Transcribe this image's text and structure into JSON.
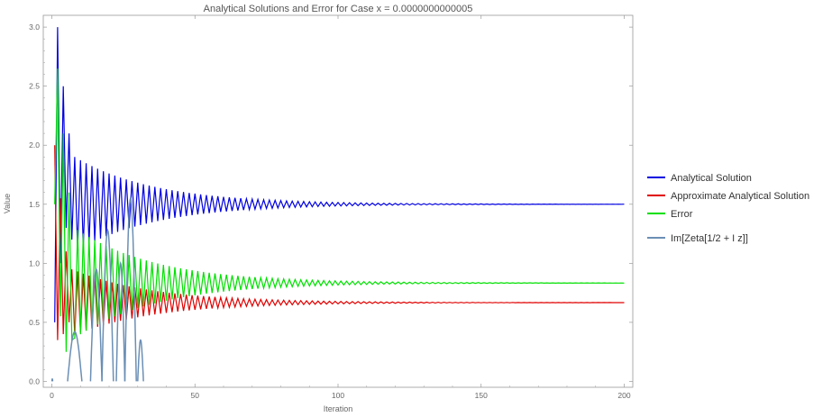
{
  "chart_data": {
    "type": "line",
    "title": "Analytical Solutions and Error for Case x = 0.0000000000005",
    "xlabel": "Iteration",
    "ylabel": "Value",
    "xlim": [
      -3,
      203
    ],
    "ylim": [
      -0.05,
      3.1
    ],
    "xticks": [
      "0",
      "50",
      "100",
      "150",
      "200"
    ],
    "yticks": [
      "0.0",
      "0.5",
      "1.0",
      "1.5",
      "2.0",
      "2.5",
      "3.0"
    ],
    "grid": false,
    "legend_position": "right",
    "series": [
      {
        "name": "Analytical Solution",
        "color": "#0000e0",
        "form": "damped-oscillation",
        "x_start": 1,
        "x_end": 200,
        "steady_value": 1.5,
        "first_values": [
          0.5,
          3.0,
          1.0,
          2.5,
          1.3,
          2.1,
          1.2,
          1.9
        ]
      },
      {
        "name": "Approximate Analytical Solution",
        "color": "#e00000",
        "form": "damped-oscillation",
        "x_start": 1,
        "x_end": 200,
        "steady_value": 0.667,
        "first_values": [
          2.0,
          0.35,
          1.55,
          0.4,
          1.1,
          0.5,
          0.95
        ]
      },
      {
        "name": "Error",
        "color": "#00e000",
        "form": "damped-oscillation",
        "x_start": 1,
        "x_end": 200,
        "steady_value": 0.833,
        "first_values": [
          1.5,
          2.65,
          0.55,
          2.1,
          0.25,
          1.6,
          0.35
        ]
      },
      {
        "name": "Im[Zeta[1/2 + I z]]",
        "color": "#6b8fb5",
        "form": "positive-lobes",
        "lobes": [
          {
            "start": 0,
            "end": 0.3,
            "peak": 0.02
          },
          {
            "start": 5.5,
            "end": 10.5,
            "peak": 0.42
          },
          {
            "start": 13.5,
            "end": 17.5,
            "peak": 0.95
          },
          {
            "start": 17.5,
            "end": 21.5,
            "peak": 1.28
          },
          {
            "start": 22.5,
            "end": 25.5,
            "peak": 1.0
          },
          {
            "start": 25.5,
            "end": 29.5,
            "peak": 1.55
          },
          {
            "start": 30.0,
            "end": 32.0,
            "peak": 0.35
          }
        ]
      }
    ]
  }
}
